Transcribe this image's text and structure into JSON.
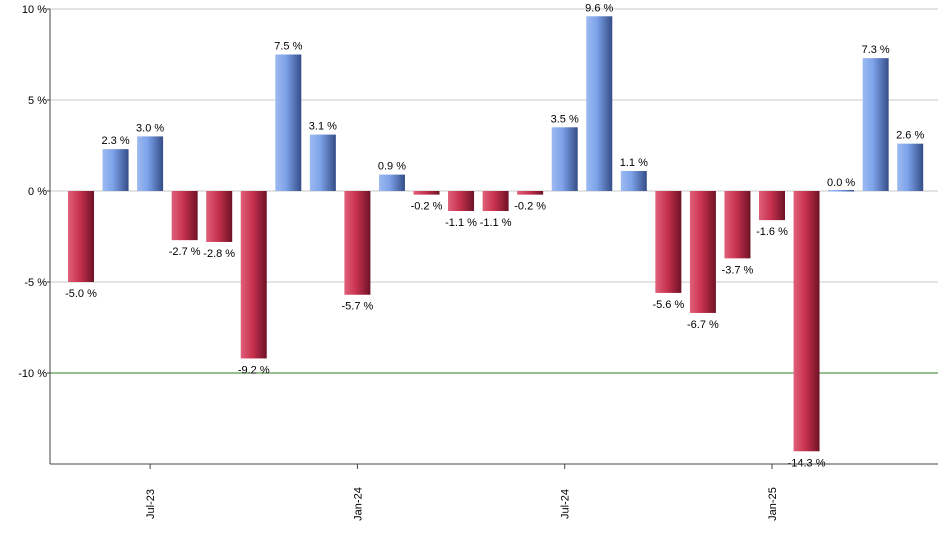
{
  "chart_data": {
    "type": "bar",
    "title": "",
    "xlabel": "",
    "ylabel": "",
    "ylim": [
      -15,
      10
    ],
    "grid": true,
    "y_ticks": [
      {
        "value": 10,
        "label": "10 %"
      },
      {
        "value": 5,
        "label": "5 %"
      },
      {
        "value": 0,
        "label": "0 %"
      },
      {
        "value": -5,
        "label": "-5 %"
      },
      {
        "value": -10,
        "label": "-10 %"
      }
    ],
    "x_ticks": [
      {
        "index": 2,
        "label": "Jul-23"
      },
      {
        "index": 8,
        "label": "Jan-24"
      },
      {
        "index": 14,
        "label": "Jul-24"
      },
      {
        "index": 20,
        "label": "Jan-25"
      }
    ],
    "reference_line": {
      "value": -10,
      "color": "#2e7d1e"
    },
    "colors": {
      "positive": "#6f95e0",
      "negative": "#c8324f",
      "grid": "#c8c8c8",
      "axis": "#444444"
    },
    "values": [
      -5.0,
      2.3,
      3.0,
      -2.7,
      -2.8,
      -9.2,
      7.5,
      3.1,
      -5.7,
      0.9,
      -0.2,
      -1.1,
      -1.1,
      -0.2,
      3.5,
      9.6,
      1.1,
      -5.6,
      -6.7,
      -3.7,
      -1.6,
      -14.3,
      0.0,
      7.3,
      2.6
    ],
    "labels": [
      "-5.0 %",
      "2.3 %",
      "3.0 %",
      "-2.7 %",
      "-2.8 %",
      "-9.2 %",
      "7.5 %",
      "3.1 %",
      "-5.7 %",
      "0.9 %",
      "-0.2 %",
      "-1.1 %",
      "-1.1 %",
      "-0.2 %",
      "3.5 %",
      "9.6 %",
      "1.1 %",
      "-5.6 %",
      "-6.7 %",
      "-3.7 %",
      "-1.6 %",
      "-14.3 %",
      "0.0 %",
      "7.3 %",
      "2.6 %"
    ]
  }
}
